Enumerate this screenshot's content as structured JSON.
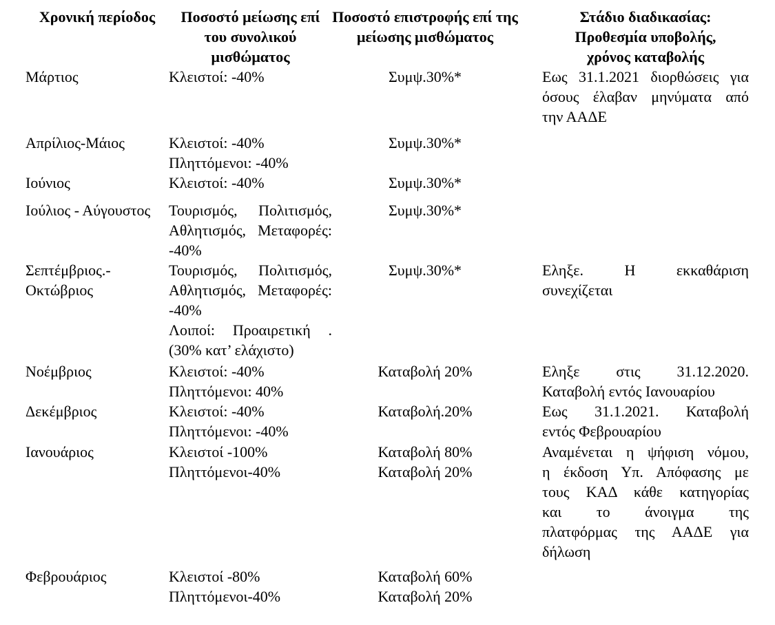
{
  "page": {
    "background_color": "#ffffff",
    "text_color": "#000000",
    "language": "el"
  },
  "table": {
    "headers": [
      {
        "lines": [
          "Χρονική περίοδος"
        ]
      },
      {
        "lines": [
          "Ποσοστό μείωσης επί",
          "του συνολικού",
          "μισθώματος"
        ]
      },
      {
        "lines": [
          "Ποσοστό επιστροφής επί της",
          "μείωσης μισθώματος"
        ]
      },
      {
        "lines": [
          "Στάδιο διαδικασίας:",
          "Προθεσμία υποβολής,",
          "χρόνος καταβολής"
        ]
      }
    ],
    "rows": [
      {
        "pad": 9,
        "period": [
          {
            "text": "Μάρτιος"
          }
        ],
        "reduction": [
          {
            "text": "Κλειστοί: -40%"
          }
        ],
        "refund": [
          {
            "text": "Συμψ.30%*"
          }
        ],
        "status": [
          {
            "text": "Εως 31.1.2021 διορθώσεις για",
            "justify": true
          },
          {
            "text": "όσους έλαβαν μηνύματα από",
            "justify": true
          },
          {
            "text": "την ΑΑΔΕ"
          }
        ]
      },
      {
        "pad": 0,
        "period": [
          {
            "text": "Απρίλιος-Μάιος"
          }
        ],
        "reduction": [
          {
            "text": "Κλειστοί: -40%"
          },
          {
            "text": "Πληττόμενοι: -40%"
          }
        ],
        "refund": [
          {
            "text": "Συμψ.30%*"
          }
        ],
        "status": []
      },
      {
        "pad": 11,
        "period": [
          {
            "text": "Ιούνιος"
          }
        ],
        "reduction": [
          {
            "text": "Κλειστοί: -40%"
          }
        ],
        "refund": [
          {
            "text": "Συμψ.30%*"
          }
        ],
        "status": []
      },
      {
        "pad": 0,
        "period": [
          {
            "text": "Ιούλιος - Αύγουστος"
          }
        ],
        "reduction": [
          {
            "text": "Τουρισμός, Πολιτισμός,",
            "justify": true
          },
          {
            "text": "Αθλητισμός, Μεταφορές:",
            "justify": true
          },
          {
            "text": "-40%"
          }
        ],
        "refund": [
          {
            "text": "Συμψ.30%*"
          }
        ],
        "status": []
      },
      {
        "pad": 2,
        "period": [
          {
            "text": "Σεπτέμβριος.-"
          },
          {
            "text": "Οκτώβριος"
          }
        ],
        "reduction": [
          {
            "text": "Τουρισμός, Πολιτισμός,",
            "justify": true
          },
          {
            "text": "Αθλητισμός, Μεταφορές:",
            "justify": true
          },
          {
            "text": "-40%"
          },
          {
            "text": "Λοιποί: Προαιρετική .",
            "justify": true
          },
          {
            "text": "(30% κατ’ ελάχιστο)"
          }
        ],
        "refund": [
          {
            "text": "Συμψ.30%*"
          }
        ],
        "status": [
          {
            "text": "Εληξε. Η εκκαθάριση",
            "justify": true
          },
          {
            "text": "συνεχίζεται"
          }
        ]
      },
      {
        "pad": 0,
        "period": [
          {
            "text": "Νοέμβριος"
          }
        ],
        "reduction": [
          {
            "text": "Κλειστοί: -40%"
          },
          {
            "text": "Πληττόμενοι: 40%"
          }
        ],
        "refund": [
          {
            "text": "Καταβολή 20%"
          }
        ],
        "status": [
          {
            "text": "Εληξε στις 31.12.2020.",
            "justify": true
          },
          {
            "text": "Καταβολή εντός Ιανουαρίου"
          }
        ]
      },
      {
        "pad": 1,
        "period": [
          {
            "text": "Δεκέμβριος"
          }
        ],
        "reduction": [
          {
            "text": "Κλειστοί: -40%"
          },
          {
            "text": "Πληττόμενοι: -40%"
          }
        ],
        "refund": [
          {
            "text": "Καταβολή.20%"
          }
        ],
        "status": [
          {
            "text": "Εως 31.1.2021. Καταβολή",
            "justify": true
          },
          {
            "text": "εντός Φεβρουαρίου"
          }
        ]
      },
      {
        "pad": 7,
        "period": [
          {
            "text": "Ιανουάριος"
          }
        ],
        "reduction": [
          {
            "text": "Κλειστοί -100%"
          },
          {
            "text": "Πληττόμενοι-40%"
          }
        ],
        "refund": [
          {
            "text": "Καταβολή 80%"
          },
          {
            "text": "Καταβολή 20%"
          }
        ],
        "status": [
          {
            "text": "Αναμένεται η ψήφιση νόμου,",
            "justify": true
          },
          {
            "text": "η έκδοση Υπ. Απόφασης με",
            "justify": true
          },
          {
            "text": "τους ΚΑΔ κάθε κατηγορίας",
            "justify": true
          },
          {
            "text": "και το άνοιγμα της",
            "justify": true
          },
          {
            "text": "πλατφόρμας της ΑΑΔΕ για",
            "justify": true
          },
          {
            "text": "δήλωση"
          }
        ]
      },
      {
        "pad": 0,
        "period": [
          {
            "text": "Φεβρουάριος"
          }
        ],
        "reduction": [
          {
            "text": "Κλειστοί -80%"
          },
          {
            "text": "Πληττόμενοι-40%"
          }
        ],
        "refund": [
          {
            "text": "Καταβολή 60%"
          },
          {
            "text": "Καταβολή 20%"
          }
        ],
        "status": []
      }
    ]
  }
}
